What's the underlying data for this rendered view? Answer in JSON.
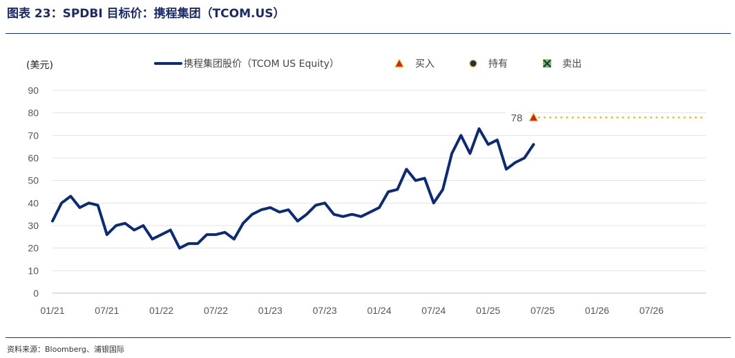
{
  "figure": {
    "title": "图表 23：SPDBI 目标价：携程集团（TCOM.US）",
    "source": "资料来源：Bloomberg、浦银国际"
  },
  "chart_data": {
    "type": "line",
    "ylabel": "(美元)",
    "ylim": [
      0,
      90
    ],
    "yticks": [
      0,
      10,
      20,
      30,
      40,
      50,
      60,
      70,
      80,
      90
    ],
    "xlim": [
      "2021-01",
      "2026-12"
    ],
    "xticks": [
      "01/21",
      "07/21",
      "01/22",
      "07/22",
      "01/23",
      "07/23",
      "01/24",
      "07/24",
      "01/25",
      "07/25",
      "01/26",
      "07/26"
    ],
    "grid": true,
    "legend": {
      "placement": "top",
      "entries": [
        "携程集团股价（TCOM US Equity）",
        "买入",
        "持有",
        "卖出"
      ]
    },
    "series": [
      {
        "name": "携程集团股价（TCOM US Equity）",
        "color": "#0b2a7a",
        "x": [
          "2021-01",
          "2021-02",
          "2021-03",
          "2021-04",
          "2021-05",
          "2021-06",
          "2021-07",
          "2021-08",
          "2021-09",
          "2021-10",
          "2021-11",
          "2021-12",
          "2022-01",
          "2022-02",
          "2022-03",
          "2022-04",
          "2022-05",
          "2022-06",
          "2022-07",
          "2022-08",
          "2022-09",
          "2022-10",
          "2022-11",
          "2022-12",
          "2023-01",
          "2023-02",
          "2023-03",
          "2023-04",
          "2023-05",
          "2023-06",
          "2023-07",
          "2023-08",
          "2023-09",
          "2023-10",
          "2023-11",
          "2023-12",
          "2024-01",
          "2024-02",
          "2024-03",
          "2024-04",
          "2024-05",
          "2024-06",
          "2024-07",
          "2024-08",
          "2024-09",
          "2024-10",
          "2024-11",
          "2024-12",
          "2025-01",
          "2025-02",
          "2025-03",
          "2025-04",
          "2025-05",
          "2025-06"
        ],
        "values": [
          32,
          40,
          43,
          38,
          40,
          39,
          26,
          30,
          31,
          28,
          30,
          24,
          26,
          28,
          20,
          22,
          22,
          26,
          26,
          27,
          24,
          31,
          35,
          37,
          38,
          36,
          37,
          32,
          35,
          39,
          40,
          35,
          34,
          35,
          34,
          36,
          38,
          45,
          46,
          55,
          50,
          51,
          40,
          46,
          62,
          70,
          62,
          73,
          66,
          68,
          55,
          58,
          60,
          66
        ]
      }
    ],
    "target_prices": [
      {
        "date": "2025-06",
        "value": 78,
        "rating": "买入",
        "color": "#d61f1f",
        "label": "78"
      }
    ],
    "rating_colors": {
      "买入": "#d61f1f",
      "持有": "#1a2a6c",
      "卖出": "#7ec246"
    },
    "target_line_color": "#f5c400"
  }
}
